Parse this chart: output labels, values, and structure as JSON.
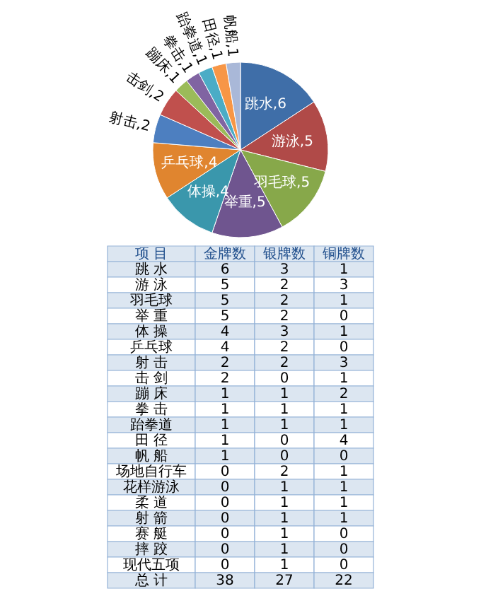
{
  "chart_data": [
    {
      "type": "pie",
      "categories": [
        "跳水",
        "游泳",
        "羽毛球",
        "举重",
        "体操",
        "乒乓球",
        "射击",
        "击剑",
        "蹦床",
        "拳击",
        "跆拳道",
        "田径",
        "帆船"
      ],
      "values": [
        6,
        5,
        5,
        5,
        4,
        4,
        2,
        2,
        1,
        1,
        1,
        1,
        1
      ],
      "colors": [
        "#3f6ea8",
        "#b04a48",
        "#87a84a",
        "#6f558f",
        "#3a97ac",
        "#e0852f",
        "#4d7fc0",
        "#c0504d",
        "#9bbb59",
        "#8064a2",
        "#4bacc6",
        "#f79646",
        "#a9b8d8"
      ],
      "value_labels": [
        ",6",
        ",5",
        ",5",
        ",5",
        ",4",
        ",4",
        ",2",
        ",2",
        ",1",
        ",1",
        ",1",
        ",1",
        ",1"
      ]
    },
    {
      "type": "heatmap",
      "ylabel": "项 目",
      "categories": [
        "金牌数",
        "银牌数",
        "铜牌数"
      ],
      "y_categories": [
        "跳 水",
        "游 泳",
        "羽毛球",
        "举 重",
        "体 操",
        "乒乓球",
        "射 击",
        "击 剑",
        "蹦 床",
        "拳 击",
        "跆拳道",
        "田 径",
        "帆 船",
        "场地自行车",
        "花样游泳",
        "柔 道",
        "射 箭",
        "赛 艇",
        "摔 跤",
        "现代五项",
        "总 计"
      ],
      "cells": [
        [
          6,
          3,
          1
        ],
        [
          5,
          2,
          3
        ],
        [
          5,
          2,
          1
        ],
        [
          5,
          2,
          0
        ],
        [
          4,
          3,
          1
        ],
        [
          4,
          2,
          0
        ],
        [
          2,
          2,
          3
        ],
        [
          2,
          0,
          1
        ],
        [
          1,
          1,
          2
        ],
        [
          1,
          1,
          1
        ],
        [
          1,
          1,
          1
        ],
        [
          1,
          0,
          4
        ],
        [
          1,
          0,
          0
        ],
        [
          0,
          2,
          1
        ],
        [
          0,
          1,
          1
        ],
        [
          0,
          1,
          1
        ],
        [
          0,
          1,
          1
        ],
        [
          0,
          1,
          0
        ],
        [
          0,
          1,
          0
        ],
        [
          0,
          1,
          0
        ],
        [
          38,
          27,
          22
        ]
      ],
      "data_labels": true
    }
  ]
}
